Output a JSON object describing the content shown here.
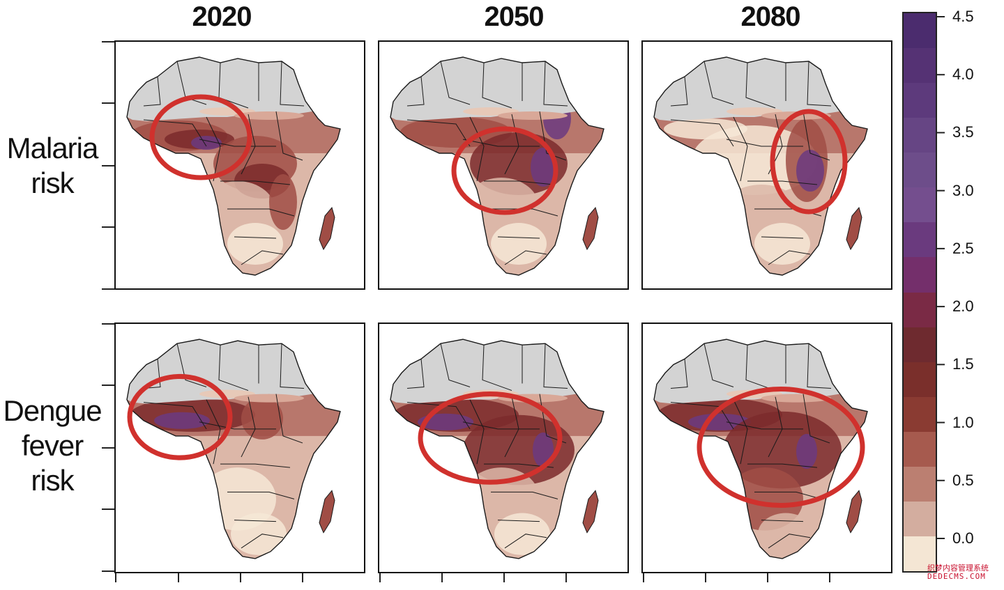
{
  "column_titles": [
    "2020",
    "2050",
    "2080"
  ],
  "row_labels": [
    {
      "lines": [
        "Malaria",
        "risk"
      ]
    },
    {
      "lines": [
        "Dengue",
        "fever",
        "risk"
      ]
    }
  ],
  "colorbar": {
    "tick_labels": [
      "4.5",
      "4.0",
      "3.5",
      "3.0",
      "2.5",
      "2.0",
      "1.5",
      "1.0",
      "0.5",
      "0.0"
    ],
    "colors_top_to_bottom": [
      "#4b2c6e",
      "#553274",
      "#5d3a7c",
      "#664584",
      "#6d4d8a",
      "#744e8e",
      "#6a3a7e",
      "#742f6b",
      "#7a2a45",
      "#6e2a2f",
      "#7a2f2b",
      "#8a3b32",
      "#a65a4e",
      "#bb7f71",
      "#d3ad9f",
      "#f4e6d4"
    ],
    "min": 0.0,
    "max": 4.5
  },
  "palette": {
    "no_risk": "#d3d3d3",
    "low": "#f6e7d6",
    "light": "#dcb7a8",
    "mid": "#a04d45",
    "high": "#7b2a2c",
    "very_high": "#6b3a80",
    "circle": "#d0312d",
    "border": "#1a1a1a"
  },
  "watermark": {
    "line1": "织梦内容管理系统",
    "line2": "DEDECMS.COM"
  }
}
